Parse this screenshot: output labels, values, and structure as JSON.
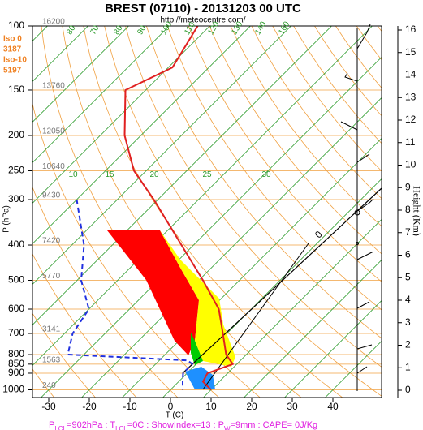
{
  "chart_data": {
    "type": "skewt",
    "title": "BREST (07110) - 20131203 00 UTC",
    "subtitle": "http://meteocentre.com/",
    "x_label": "T (C)",
    "y_label": "P (hPa)",
    "xlim": [
      -34,
      52
    ],
    "xticks": [
      -30,
      -20,
      -10,
      0,
      10,
      20,
      30,
      40
    ],
    "ylim": [
      1050,
      100
    ],
    "yticks": [
      100,
      150,
      200,
      250,
      300,
      400,
      500,
      600,
      700,
      800,
      850,
      900,
      1000
    ],
    "log_scale": true,
    "zero_isotherm_label": 0,
    "geopotential": [
      {
        "p": 100,
        "h": 16200
      },
      {
        "p": 150,
        "h": 13760
      },
      {
        "p": 200,
        "h": 12050
      },
      {
        "p": 250,
        "h": 10640
      },
      {
        "p": 300,
        "h": 9430
      },
      {
        "p": 400,
        "h": 7420
      },
      {
        "p": 500,
        "h": 5770
      },
      {
        "p": 700,
        "h": 3141
      },
      {
        "p": 850,
        "h": 1563
      },
      {
        "p": 1000,
        "h": 240
      }
    ],
    "moist_adiabat_labels": [
      10,
      15,
      20,
      25,
      30
    ],
    "theta_labels": [
      80,
      70,
      80,
      90,
      100,
      110,
      120,
      130,
      140,
      160
    ],
    "freezing_levels": [
      "Iso 0",
      "3187",
      "Iso-10",
      "5197"
    ],
    "height_axis": {
      "label": "Height (Km)",
      "lim": [
        0,
        16
      ],
      "ticks": [
        0,
        1,
        2,
        3,
        4,
        5,
        6,
        7,
        8,
        9,
        10,
        11,
        12,
        13,
        14,
        15,
        16
      ]
    },
    "series": [
      {
        "color": "#e02020",
        "dash": false,
        "p": [
          100,
          130,
          150,
          200,
          250,
          300,
          400,
          500,
          600,
          700,
          800,
          850,
          900,
          950,
          1000
        ],
        "values": [
          -83,
          -79,
          -85,
          -74,
          -63,
          -51,
          -33,
          -19,
          -8,
          -1,
          5,
          9,
          5,
          6,
          10
        ]
      },
      {
        "color": "#2030e0",
        "dash": true,
        "p": [
          300,
          400,
          500,
          600,
          700,
          800,
          830,
          850,
          900,
          950,
          1000
        ],
        "values": [
          -70,
          -57,
          -49,
          -40,
          -38,
          -34,
          -3,
          -1,
          -1,
          1,
          3
        ]
      }
    ],
    "footer": [
      "P",
      "LCL",
      "=902hPa : T",
      "LCL",
      "=0C : ShowIndex=13 : P",
      "W",
      "=9mm : CAPE= 0J/Kg"
    ]
  }
}
